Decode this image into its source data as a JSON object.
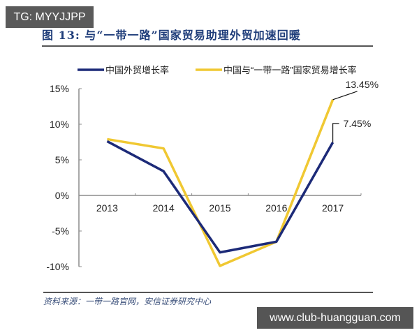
{
  "watermarks": {
    "top_left": "TG: MYYJJPP",
    "bottom_right": "www.club-huangguan.com"
  },
  "figure": {
    "title": "图 13: 与“一带一路”国家贸易助理外贸加速回暖",
    "source": "资料来源：一带一路官网，安信证券研究中心"
  },
  "colors": {
    "china_trade": "#1c2a78",
    "belt_road_trade": "#f0c832",
    "axis": "#8c8c8c",
    "text": "#222222"
  },
  "chart_data": {
    "type": "line",
    "title": "图 13: 与“一带一路”国家贸易助理外贸加速回暖",
    "xlabel": "",
    "ylabel": "",
    "categories": [
      "2013",
      "2014",
      "2015",
      "2016",
      "2017"
    ],
    "series": [
      {
        "name": "中国外贸增长率",
        "color": "#1c2a78",
        "values": [
          7.6,
          3.4,
          -8.0,
          -6.5,
          7.45
        ]
      },
      {
        "name": "中国与“一带一路”国家贸易增长率",
        "color": "#f0c832",
        "values": [
          7.9,
          6.6,
          -9.9,
          -6.5,
          13.45
        ]
      }
    ],
    "y_ticks": [
      "15%",
      "10%",
      "5%",
      "0%",
      "-5%",
      "-10%"
    ],
    "ylim": [
      -10,
      15
    ],
    "annotations": [
      {
        "series": "中国与“一带一路”国家贸易增长率",
        "x": "2017",
        "label": "13.45%"
      },
      {
        "series": "中国外贸增长率",
        "x": "2017",
        "label": "7.45%"
      }
    ],
    "legend_position": "top",
    "grid": false
  }
}
